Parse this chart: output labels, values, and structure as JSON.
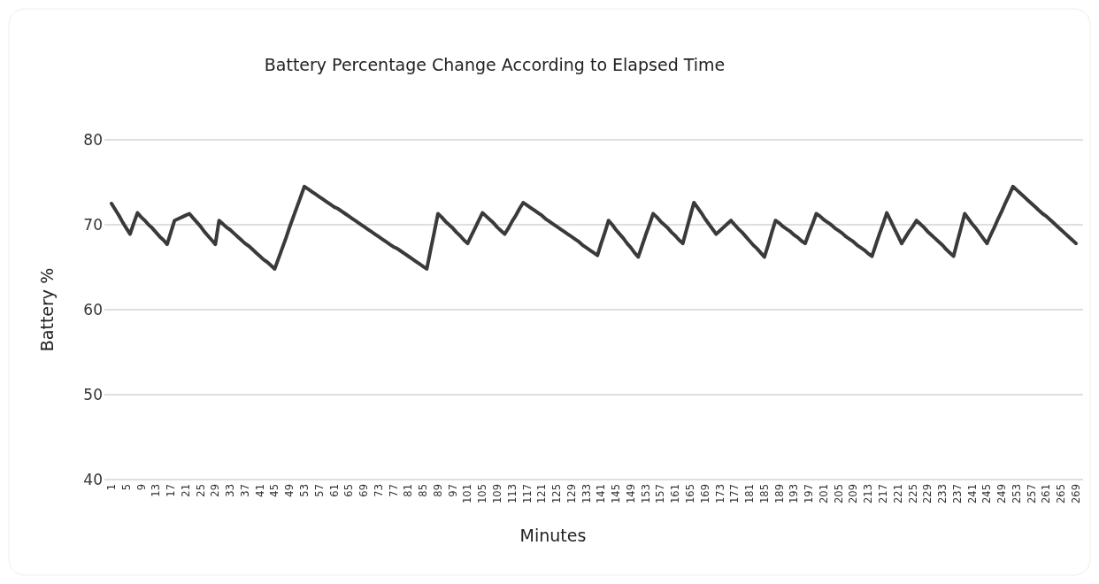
{
  "chart_data": {
    "type": "line",
    "title": "Battery Percentage Change According to Elapsed Time",
    "xlabel": "Minutes",
    "ylabel": "Battery %",
    "categories": [
      "1",
      null,
      null,
      null,
      "5",
      null,
      null,
      null,
      "9",
      null,
      null,
      null,
      "13",
      null,
      null,
      null,
      "17",
      null,
      null,
      null,
      "21",
      null,
      null,
      null,
      "25",
      null,
      null,
      null,
      "29",
      null,
      null,
      null,
      "33",
      null,
      null,
      null,
      "37",
      null,
      null,
      null,
      "41",
      null,
      null,
      null,
      "45",
      null,
      null,
      null,
      "49",
      null,
      null,
      null,
      "53",
      null,
      null,
      null,
      "57",
      null,
      null,
      null,
      "61",
      null,
      null,
      null,
      "65",
      null,
      null,
      null,
      "69",
      null,
      null,
      null,
      "73",
      null,
      null,
      null,
      "77",
      null,
      null,
      null,
      "81",
      null,
      null,
      null,
      "85",
      null,
      null,
      null,
      "89",
      null,
      null,
      null,
      "97",
      null,
      null,
      null,
      "101",
      null,
      null,
      null,
      "105",
      null,
      null,
      null,
      "109",
      null,
      null,
      null,
      "113",
      null,
      null,
      null,
      "117",
      null,
      null,
      null,
      "121",
      null,
      null,
      null,
      "125",
      null,
      null,
      null,
      "129",
      null,
      null,
      null,
      "133",
      null,
      null,
      null,
      "141",
      null,
      null,
      null,
      "145",
      null,
      null,
      null,
      "149",
      null,
      null,
      null,
      "153",
      null,
      null,
      null,
      "157",
      null,
      null,
      null,
      "161",
      null,
      null,
      null,
      "165",
      null,
      null,
      null,
      "169",
      null,
      null,
      null,
      "173",
      null,
      null,
      null,
      "177",
      null,
      null,
      null,
      "181",
      null,
      null,
      null,
      "185",
      null,
      null,
      null,
      "189",
      null,
      null,
      null,
      "193",
      null,
      null,
      null,
      "197",
      null,
      null,
      null,
      "201",
      null,
      null,
      null,
      "205",
      null,
      null,
      null,
      "209",
      null,
      null,
      null,
      "213",
      null,
      null,
      null,
      "217",
      null,
      null,
      null,
      "221",
      null,
      null,
      null,
      "225",
      null,
      null,
      null,
      "229",
      null,
      null,
      null,
      "233",
      null,
      null,
      null,
      "237",
      null,
      null,
      null,
      "241",
      null,
      null,
      null,
      "245",
      null,
      null,
      null,
      "249",
      null,
      null,
      null,
      "253",
      null,
      null,
      null,
      "257",
      null,
      null,
      null,
      "261",
      null,
      null,
      null,
      "265",
      null,
      null,
      null,
      "269"
    ],
    "series": [
      {
        "color": "#3a3a3a",
        "values": [
          72.5,
          71.8,
          71.1,
          70.3,
          69.6,
          68.9,
          70.2,
          71.4,
          70.9,
          70.5,
          70.0,
          69.6,
          69.1,
          68.6,
          68.2,
          67.7,
          69.1,
          70.5,
          70.7,
          70.9,
          71.1,
          71.3,
          70.8,
          70.3,
          69.8,
          69.2,
          68.7,
          68.2,
          67.7,
          70.5,
          70.1,
          69.7,
          69.4,
          69.0,
          68.6,
          68.2,
          67.8,
          67.5,
          67.1,
          66.7,
          66.3,
          65.9,
          65.6,
          65.2,
          64.8,
          66.0,
          67.2,
          68.4,
          69.7,
          70.9,
          72.1,
          73.3,
          74.5,
          74.2,
          73.9,
          73.6,
          73.3,
          73.0,
          72.7,
          72.4,
          72.1,
          71.9,
          71.6,
          71.3,
          71.0,
          70.7,
          70.4,
          70.1,
          69.8,
          69.5,
          69.2,
          68.9,
          68.6,
          68.3,
          68.0,
          67.7,
          67.4,
          67.2,
          66.9,
          66.6,
          66.3,
          66.0,
          65.7,
          65.4,
          65.1,
          64.8,
          67.0,
          69.1,
          71.3,
          70.9,
          70.4,
          70.0,
          69.6,
          69.1,
          68.7,
          68.2,
          67.8,
          68.7,
          69.6,
          70.5,
          71.4,
          71.0,
          70.6,
          70.2,
          69.7,
          69.3,
          68.9,
          69.6,
          70.4,
          71.1,
          71.9,
          72.6,
          72.3,
          72.0,
          71.7,
          71.4,
          71.1,
          70.7,
          70.4,
          70.1,
          69.8,
          69.5,
          69.2,
          68.9,
          68.6,
          68.3,
          68.0,
          67.6,
          67.3,
          67.0,
          66.7,
          66.4,
          67.8,
          69.1,
          70.5,
          70.0,
          69.4,
          68.9,
          68.4,
          67.8,
          67.3,
          66.7,
          66.2,
          67.5,
          68.8,
          70.0,
          71.3,
          70.9,
          70.4,
          70.0,
          69.6,
          69.1,
          68.7,
          68.2,
          67.8,
          69.4,
          71.0,
          72.6,
          72.0,
          71.4,
          70.7,
          70.1,
          69.5,
          68.9,
          69.3,
          69.7,
          70.1,
          70.5,
          70.0,
          69.5,
          69.1,
          68.6,
          68.1,
          67.6,
          67.2,
          66.7,
          66.2,
          67.6,
          69.1,
          70.5,
          70.2,
          69.8,
          69.5,
          69.2,
          68.8,
          68.5,
          68.1,
          67.8,
          69.0,
          70.1,
          71.3,
          71.0,
          70.6,
          70.3,
          70.0,
          69.6,
          69.3,
          69.0,
          68.6,
          68.3,
          68.0,
          67.6,
          67.3,
          67.0,
          66.6,
          66.3,
          67.6,
          68.9,
          70.1,
          71.4,
          70.5,
          69.6,
          68.7,
          67.8,
          68.5,
          69.2,
          69.8,
          70.5,
          70.1,
          69.7,
          69.2,
          68.8,
          68.4,
          68.0,
          67.6,
          67.1,
          66.7,
          66.3,
          68.0,
          69.6,
          71.3,
          70.7,
          70.1,
          69.6,
          69.0,
          68.4,
          67.8,
          68.8,
          69.7,
          70.7,
          71.6,
          72.6,
          73.5,
          74.5,
          74.1,
          73.7,
          73.3,
          72.9,
          72.5,
          72.1,
          71.7,
          71.3,
          71.0,
          70.6,
          70.2,
          69.8,
          69.4,
          69.0,
          68.6,
          68.2,
          67.8
        ]
      }
    ],
    "ylim": [
      40,
      80
    ],
    "yticks": [
      40,
      50,
      60,
      70,
      80
    ],
    "grid": "y",
    "marker": "none",
    "line_style": "solid"
  }
}
